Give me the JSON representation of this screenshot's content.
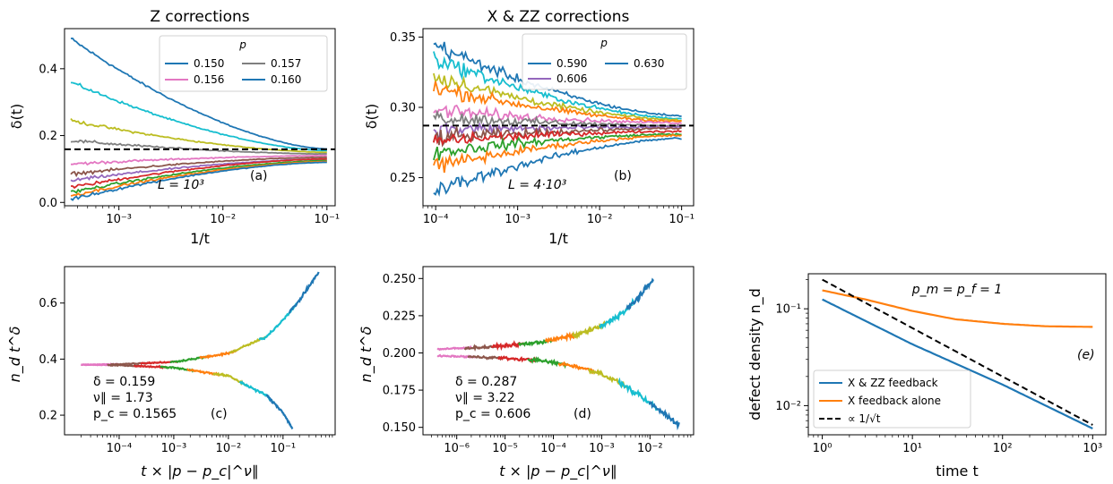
{
  "chart_data": [
    {
      "id": "a",
      "type": "line",
      "title": "Z corrections",
      "xlabel": "1/t",
      "ylabel": "δ(t)",
      "xscale": "log",
      "xlim": [
        0.0003,
        0.12
      ],
      "ylim": [
        -0.01,
        0.52
      ],
      "xticks": [
        0.001,
        0.01,
        0.1
      ],
      "xtick_labels": [
        "10⁻³",
        "10⁻²",
        "10⁻¹"
      ],
      "yticks": [
        0.0,
        0.2,
        0.4
      ],
      "ytick_labels": [
        "0.0",
        "0.2",
        "0.4"
      ],
      "legend": {
        "title": "p",
        "position": "top-right",
        "entries": [
          {
            "label": "0.150",
            "color": "#1f77b4"
          },
          {
            "label": "0.157",
            "color": "#7f7f7f"
          },
          {
            "label": "0.156",
            "color": "#e377c2"
          },
          {
            "label": "0.160",
            "color": "#1f77b4"
          }
        ]
      },
      "hline": {
        "y": 0.159,
        "style": "dashed",
        "color": "#000000"
      },
      "annotations": [
        "L = 10³",
        "(a)"
      ],
      "series": [
        {
          "color": "#1f77b4",
          "start": 0.49,
          "end": 0.16
        },
        {
          "color": "#17becf",
          "start": 0.36,
          "end": 0.155
        },
        {
          "color": "#bcbd22",
          "start": 0.245,
          "end": 0.15
        },
        {
          "color": "#7f7f7f",
          "start": 0.185,
          "end": 0.145
        },
        {
          "color": "#e377c2",
          "start": 0.115,
          "end": 0.14
        },
        {
          "color": "#8c564b",
          "start": 0.085,
          "end": 0.135
        },
        {
          "color": "#9467bd",
          "start": 0.065,
          "end": 0.13
        },
        {
          "color": "#d62728",
          "start": 0.045,
          "end": 0.13
        },
        {
          "color": "#2ca02c",
          "start": 0.03,
          "end": 0.125
        },
        {
          "color": "#ff7f0e",
          "start": 0.02,
          "end": 0.122
        },
        {
          "color": "#1f77b4",
          "start": 0.01,
          "end": 0.12
        }
      ]
    },
    {
      "id": "b",
      "type": "line",
      "title": "X & ZZ corrections",
      "xlabel": "1/t",
      "ylabel": "δ(t)",
      "xscale": "log",
      "xlim": [
        7e-05,
        0.14
      ],
      "ylim": [
        0.23,
        0.356
      ],
      "xticks": [
        0.0001,
        0.001,
        0.01,
        0.1
      ],
      "xtick_labels": [
        "10⁻⁴",
        "10⁻³",
        "10⁻²",
        "10⁻¹"
      ],
      "yticks": [
        0.25,
        0.3,
        0.35
      ],
      "ytick_labels": [
        "0.25",
        "0.30",
        "0.35"
      ],
      "legend": {
        "title": "p",
        "position": "top-right",
        "entries": [
          {
            "label": "0.590",
            "color": "#1f77b4"
          },
          {
            "label": "0.630",
            "color": "#1f77b4"
          },
          {
            "label": "0.606",
            "color": "#9467bd"
          }
        ]
      },
      "hline": {
        "y": 0.287,
        "style": "dashed",
        "color": "#000000"
      },
      "annotations": [
        "L = 4·10³",
        "(b)"
      ],
      "series": [
        {
          "color": "#1f77b4",
          "start": 0.345,
          "end": 0.294
        },
        {
          "color": "#17becf",
          "start": 0.335,
          "end": 0.292
        },
        {
          "color": "#bcbd22",
          "start": 0.322,
          "end": 0.291
        },
        {
          "color": "#ff7f0e",
          "start": 0.314,
          "end": 0.29
        },
        {
          "color": "#e377c2",
          "start": 0.298,
          "end": 0.289
        },
        {
          "color": "#7f7f7f",
          "start": 0.293,
          "end": 0.287
        },
        {
          "color": "#9467bd",
          "start": 0.284,
          "end": 0.286
        },
        {
          "color": "#8c564b",
          "start": 0.278,
          "end": 0.285
        },
        {
          "color": "#d62728",
          "start": 0.276,
          "end": 0.283
        },
        {
          "color": "#2ca02c",
          "start": 0.268,
          "end": 0.281
        },
        {
          "color": "#ff7f0e",
          "start": 0.258,
          "end": 0.28
        },
        {
          "color": "#1f77b4",
          "start": 0.24,
          "end": 0.278
        }
      ]
    },
    {
      "id": "c",
      "type": "line",
      "xlabel": "t × |p − p_c|^ν∥",
      "ylabel": "n_d t^δ",
      "xscale": "log",
      "xlim": [
        1e-05,
        0.9
      ],
      "ylim": [
        0.13,
        0.73
      ],
      "xticks": [
        0.0001,
        0.001,
        0.01,
        0.1
      ],
      "xtick_labels": [
        "10⁻⁴",
        "10⁻³",
        "10⁻²",
        "10⁻¹"
      ],
      "yticks": [
        0.2,
        0.4,
        0.6
      ],
      "ytick_labels": [
        "0.2",
        "0.4",
        "0.6"
      ],
      "annotations": [
        "δ = 0.159",
        "ν∥ = 1.73",
        "p_c = 0.1565",
        "(c)"
      ],
      "upper_branch": {
        "x": [
          2e-05,
          0.0001,
          0.001,
          0.01,
          0.05,
          0.1,
          0.2,
          0.45
        ],
        "y": [
          0.38,
          0.382,
          0.39,
          0.42,
          0.48,
          0.54,
          0.61,
          0.71
        ]
      },
      "lower_branch": {
        "x": [
          2e-05,
          0.0001,
          0.001,
          0.01,
          0.05,
          0.1,
          0.15
        ],
        "y": [
          0.38,
          0.378,
          0.37,
          0.34,
          0.27,
          0.21,
          0.15
        ]
      },
      "colors": [
        "#e377c2",
        "#8c564b",
        "#d62728",
        "#2ca02c",
        "#ff7f0e",
        "#bcbd22",
        "#17becf",
        "#1f77b4"
      ]
    },
    {
      "id": "d",
      "type": "line",
      "xlabel": "t × |p − p_c|^ν∥",
      "ylabel": "n_d t^δ",
      "xscale": "log",
      "xlim": [
        2e-07,
        0.08
      ],
      "ylim": [
        0.145,
        0.258
      ],
      "xticks": [
        1e-06,
        1e-05,
        0.0001,
        0.001,
        0.01
      ],
      "xtick_labels": [
        "10⁻⁶",
        "10⁻⁵",
        "10⁻⁴",
        "10⁻³",
        "10⁻²"
      ],
      "yticks": [
        0.15,
        0.175,
        0.2,
        0.225,
        0.25
      ],
      "ytick_labels": [
        "0.150",
        "0.175",
        "0.200",
        "0.225",
        "0.250"
      ],
      "annotations": [
        "δ = 0.287",
        "ν∥ = 3.22",
        "p_c = 0.606",
        "(d)"
      ],
      "upper_branch": {
        "x": [
          4e-07,
          5e-06,
          5e-05,
          0.0003,
          0.001,
          0.003,
          0.007,
          0.012
        ],
        "y": [
          0.2025,
          0.204,
          0.207,
          0.212,
          0.218,
          0.228,
          0.24,
          0.25
        ]
      },
      "lower_branch": {
        "x": [
          4e-07,
          5e-06,
          5e-05,
          0.0003,
          0.001,
          0.003,
          0.01,
          0.04
        ],
        "y": [
          0.198,
          0.197,
          0.195,
          0.191,
          0.186,
          0.178,
          0.166,
          0.152
        ]
      },
      "colors": [
        "#e377c2",
        "#8c564b",
        "#d62728",
        "#2ca02c",
        "#ff7f0e",
        "#bcbd22",
        "#17becf",
        "#1f77b4"
      ]
    },
    {
      "id": "e",
      "type": "line",
      "xlabel": "time t",
      "ylabel": "defect density n_d",
      "xscale": "log",
      "yscale": "log",
      "xlim": [
        0.7,
        1400
      ],
      "ylim": [
        0.005,
        0.23
      ],
      "xticks": [
        1,
        10,
        100,
        1000
      ],
      "xtick_labels": [
        "10⁰",
        "10¹",
        "10²",
        "10³"
      ],
      "yticks": [
        0.01,
        0.1
      ],
      "ytick_labels": [
        "10⁻²",
        "10⁻¹"
      ],
      "annotations": [
        "p_m = p_f = 1",
        "(e)"
      ],
      "legend": {
        "position": "lower-left",
        "entries": [
          "X & ZZ feedback",
          "X feedback alone",
          "∝ 1/√t"
        ]
      },
      "series": [
        {
          "name": "X & ZZ feedback",
          "color": "#1f77b4",
          "x": [
            1,
            10,
            100,
            1000
          ],
          "y": [
            0.125,
            0.043,
            0.0165,
            0.0058
          ]
        },
        {
          "name": "X feedback alone",
          "color": "#ff7f0e",
          "x": [
            1,
            3,
            10,
            30,
            100,
            300,
            1000
          ],
          "y": [
            0.155,
            0.125,
            0.095,
            0.078,
            0.07,
            0.066,
            0.065
          ]
        },
        {
          "name": "∝ 1/√t",
          "color": "#000000",
          "style": "dashed",
          "x": [
            1,
            1000
          ],
          "y": [
            0.2,
            0.00632
          ]
        }
      ]
    }
  ]
}
